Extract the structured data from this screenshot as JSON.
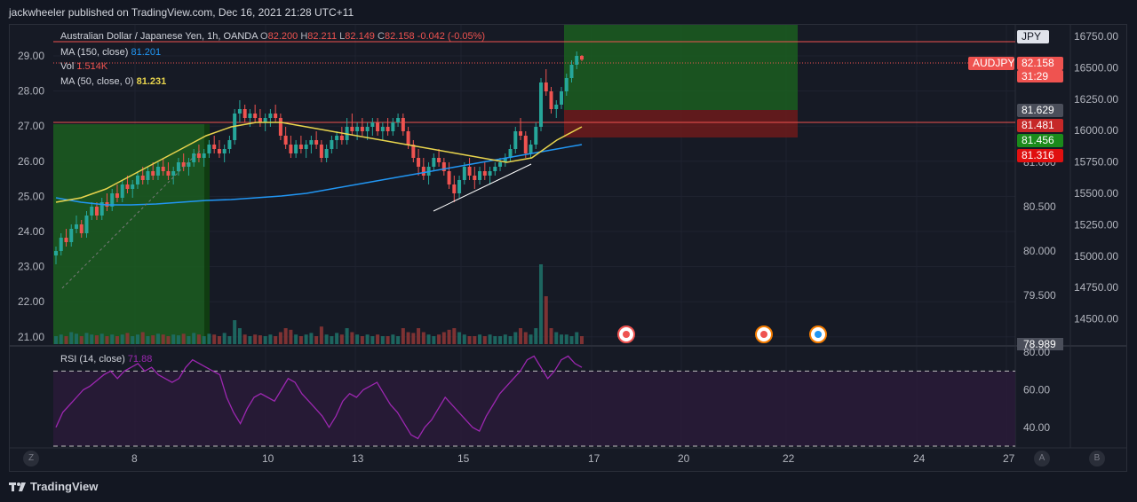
{
  "caption": "jackwheeler published on TradingView.com, Dec 16, 2021 21:28 UTC+11",
  "footer": {
    "brand": "TradingView"
  },
  "legend": {
    "symbol": "Australian Dollar / Japanese Yen, 1h, OANDA",
    "o_label": "O",
    "o_value": "82.200",
    "h_label": "H",
    "h_value": "82.211",
    "l_label": "L",
    "l_value": "82.149",
    "c_label": "C",
    "c_value": "82.158",
    "change": "-0.042 (-0.05%)",
    "ma150_label": "MA (150, close)",
    "ma150_value": "81.201",
    "vol_label": "Vol",
    "vol_value": "1.514K",
    "ma50_label": "MA (50, close, 0)",
    "ma50_value": "81.231",
    "rsi_label": "RSI (14, close)",
    "rsi_value": "71.88"
  },
  "colors": {
    "bull": "#26a69a",
    "bear": "#ef5350",
    "ma150": "#2196f3",
    "ma50": "#e8d44d",
    "rsi": "#9c27b0",
    "green_zone": "#1b5e20",
    "red_zone": "#6d1b1b",
    "hline": "#ef5350",
    "trendline": "#ffffff"
  },
  "chart_data": {
    "type": "candlestick",
    "title": "Australian Dollar / Japanese Yen, 1h, OANDA",
    "left_axis_ticks": [
      "29.00",
      "28.00",
      "27.00",
      "26.00",
      "25.00",
      "24.00",
      "23.00",
      "22.00",
      "21.00"
    ],
    "left_axis_range": [
      20.9,
      29.5
    ],
    "price_axis_ticks": [
      "81.000",
      "80.500",
      "80.000",
      "79.500",
      "78.989"
    ],
    "price_range": [
      78.95,
      82.55
    ],
    "second_axis_ticks": [
      "16750.00",
      "16500.00",
      "16250.00",
      "16000.00",
      "15750.00",
      "15500.00",
      "15250.00",
      "15000.00",
      "14750.00",
      "14500.00"
    ],
    "x_axis_labels": [
      "8",
      "10",
      "13",
      "15",
      "17",
      "20",
      "22",
      "24",
      "27"
    ],
    "rsi_axis_ticks": [
      "80.00",
      "60.00",
      "40.00"
    ],
    "rsi_range": [
      30,
      82
    ],
    "rsi_bands": [
      70,
      30
    ],
    "price_labels": [
      {
        "text": "JPY",
        "bg": "#e0e3eb",
        "fg": "#131722"
      },
      {
        "text": "AUDJPY",
        "bg": "#ef5350",
        "fg": "#ffffff"
      },
      {
        "text": "82.158",
        "bg": "#ef5350",
        "fg": "#ffffff"
      },
      {
        "text": "31:29",
        "bg": "#ef5350",
        "fg": "#ffffff"
      },
      {
        "text": "81.629",
        "bg": "#4a4e5a",
        "fg": "#ffffff"
      },
      {
        "text": "81.481",
        "bg": "#c62828",
        "fg": "#ffffff"
      },
      {
        "text": "81.456",
        "bg": "#1b8a1b",
        "fg": "#ffffff"
      },
      {
        "text": "81.316",
        "bg": "#e01010",
        "fg": "#ffffff"
      },
      {
        "text": "78.989",
        "bg": "#4a4e5a",
        "fg": "#ffffff"
      }
    ],
    "candles": [
      [
        79.95,
        80.05,
        79.85,
        80.0
      ],
      [
        80.0,
        80.2,
        79.95,
        80.15
      ],
      [
        80.15,
        80.25,
        80.05,
        80.1
      ],
      [
        80.1,
        80.3,
        80.05,
        80.25
      ],
      [
        80.25,
        80.4,
        80.2,
        80.3
      ],
      [
        80.3,
        80.35,
        80.15,
        80.2
      ],
      [
        80.2,
        80.45,
        80.15,
        80.4
      ],
      [
        80.4,
        80.55,
        80.35,
        80.5
      ],
      [
        80.5,
        80.55,
        80.35,
        80.4
      ],
      [
        80.4,
        80.6,
        80.35,
        80.55
      ],
      [
        80.55,
        80.65,
        80.45,
        80.5
      ],
      [
        80.5,
        80.7,
        80.45,
        80.65
      ],
      [
        80.65,
        80.75,
        80.55,
        80.6
      ],
      [
        80.6,
        80.8,
        80.55,
        80.75
      ],
      [
        80.75,
        80.85,
        80.65,
        80.7
      ],
      [
        80.7,
        80.8,
        80.6,
        80.75
      ],
      [
        80.75,
        80.9,
        80.7,
        80.85
      ],
      [
        80.85,
        80.95,
        80.75,
        80.8
      ],
      [
        80.8,
        80.95,
        80.75,
        80.9
      ],
      [
        80.9,
        81.0,
        80.8,
        80.85
      ],
      [
        80.85,
        81.0,
        80.8,
        80.95
      ],
      [
        80.95,
        81.05,
        80.85,
        80.9
      ],
      [
        80.9,
        81.0,
        80.8,
        80.85
      ],
      [
        80.85,
        80.95,
        80.75,
        80.9
      ],
      [
        80.9,
        81.05,
        80.85,
        81.0
      ],
      [
        81.0,
        81.1,
        80.9,
        80.95
      ],
      [
        80.95,
        81.05,
        80.85,
        81.0
      ],
      [
        81.0,
        81.15,
        80.95,
        81.1
      ],
      [
        81.1,
        81.2,
        81.0,
        81.05
      ],
      [
        81.05,
        81.15,
        80.95,
        81.1
      ],
      [
        81.1,
        81.25,
        81.05,
        81.2
      ],
      [
        81.2,
        81.3,
        81.1,
        81.15
      ],
      [
        81.15,
        81.25,
        81.05,
        81.1
      ],
      [
        81.1,
        81.2,
        81.0,
        81.15
      ],
      [
        81.15,
        81.3,
        81.1,
        81.25
      ],
      [
        81.25,
        81.6,
        81.2,
        81.55
      ],
      [
        81.55,
        81.7,
        81.45,
        81.6
      ],
      [
        81.6,
        81.65,
        81.45,
        81.5
      ],
      [
        81.5,
        81.6,
        81.4,
        81.55
      ],
      [
        81.55,
        81.65,
        81.45,
        81.5
      ],
      [
        81.5,
        81.6,
        81.4,
        81.45
      ],
      [
        81.45,
        81.55,
        81.35,
        81.5
      ],
      [
        81.5,
        81.6,
        81.4,
        81.55
      ],
      [
        81.55,
        81.65,
        81.45,
        81.5
      ],
      [
        81.5,
        81.55,
        81.25,
        81.3
      ],
      [
        81.3,
        81.4,
        81.15,
        81.2
      ],
      [
        81.2,
        81.3,
        81.05,
        81.1
      ],
      [
        81.1,
        81.25,
        81.05,
        81.2
      ],
      [
        81.2,
        81.3,
        81.1,
        81.15
      ],
      [
        81.15,
        81.25,
        81.05,
        81.2
      ],
      [
        81.2,
        81.3,
        81.1,
        81.25
      ],
      [
        81.25,
        81.35,
        81.15,
        81.2
      ],
      [
        81.2,
        81.25,
        81.0,
        81.05
      ],
      [
        81.05,
        81.2,
        81.0,
        81.15
      ],
      [
        81.15,
        81.3,
        81.1,
        81.25
      ],
      [
        81.25,
        81.35,
        81.15,
        81.3
      ],
      [
        81.3,
        81.4,
        81.2,
        81.25
      ],
      [
        81.25,
        81.5,
        81.2,
        81.4
      ],
      [
        81.4,
        81.55,
        81.3,
        81.35
      ],
      [
        81.35,
        81.45,
        81.25,
        81.4
      ],
      [
        81.4,
        81.5,
        81.3,
        81.35
      ],
      [
        81.35,
        81.45,
        81.25,
        81.4
      ],
      [
        81.4,
        81.5,
        81.3,
        81.45
      ],
      [
        81.45,
        81.5,
        81.3,
        81.35
      ],
      [
        81.35,
        81.45,
        81.25,
        81.4
      ],
      [
        81.4,
        81.5,
        81.3,
        81.35
      ],
      [
        81.35,
        81.5,
        81.3,
        81.45
      ],
      [
        81.45,
        81.55,
        81.4,
        81.5
      ],
      [
        81.5,
        81.55,
        81.3,
        81.35
      ],
      [
        81.35,
        81.4,
        81.15,
        81.2
      ],
      [
        81.2,
        81.25,
        81.0,
        81.05
      ],
      [
        81.05,
        81.15,
        80.85,
        80.95
      ],
      [
        80.95,
        81.05,
        80.8,
        80.85
      ],
      [
        80.85,
        81.0,
        80.75,
        80.95
      ],
      [
        80.95,
        81.1,
        80.9,
        81.05
      ],
      [
        81.05,
        81.15,
        80.95,
        81.0
      ],
      [
        81.0,
        81.05,
        80.85,
        80.9
      ],
      [
        80.9,
        81.0,
        80.7,
        80.75
      ],
      [
        80.75,
        80.85,
        80.55,
        80.65
      ],
      [
        80.65,
        80.85,
        80.6,
        80.8
      ],
      [
        80.8,
        81.0,
        80.75,
        80.95
      ],
      [
        80.95,
        81.05,
        80.8,
        80.85
      ],
      [
        80.85,
        80.95,
        80.7,
        80.8
      ],
      [
        80.8,
        80.95,
        80.75,
        80.9
      ],
      [
        80.9,
        81.0,
        80.8,
        80.85
      ],
      [
        80.85,
        80.95,
        80.75,
        80.9
      ],
      [
        80.9,
        81.0,
        80.85,
        80.95
      ],
      [
        80.95,
        81.05,
        80.9,
        81.0
      ],
      [
        81.0,
        81.1,
        80.95,
        81.05
      ],
      [
        81.05,
        81.2,
        81.0,
        81.15
      ],
      [
        81.15,
        81.4,
        81.1,
        81.35
      ],
      [
        81.35,
        81.5,
        81.25,
        81.3
      ],
      [
        81.3,
        81.35,
        81.05,
        81.1
      ],
      [
        81.1,
        81.25,
        81.05,
        81.2
      ],
      [
        81.2,
        81.45,
        81.15,
        81.4
      ],
      [
        81.4,
        81.95,
        81.35,
        81.9
      ],
      [
        81.9,
        82.05,
        81.75,
        81.8
      ],
      [
        81.8,
        81.85,
        81.55,
        81.6
      ],
      [
        81.6,
        81.7,
        81.5,
        81.65
      ],
      [
        81.65,
        81.85,
        81.6,
        81.8
      ],
      [
        81.8,
        82.0,
        81.75,
        81.95
      ],
      [
        81.95,
        82.15,
        81.9,
        82.1
      ],
      [
        82.1,
        82.25,
        82.05,
        82.2
      ],
      [
        82.2,
        82.21,
        82.14,
        82.158
      ]
    ],
    "ma50": [
      80.55,
      80.6,
      80.7,
      80.85,
      81.0,
      81.15,
      81.3,
      81.4,
      81.45,
      81.45,
      81.4,
      81.35,
      81.3,
      81.25,
      81.2,
      81.15,
      81.1,
      81.05,
      81.0,
      81.05,
      81.25,
      81.4
    ],
    "ma150": [
      80.6,
      80.55,
      80.52,
      80.52,
      80.53,
      80.55,
      80.57,
      80.58,
      80.6,
      80.62,
      80.65,
      80.7,
      80.75,
      80.8,
      80.85,
      80.9,
      80.95,
      81.0,
      81.05,
      81.1,
      81.15,
      81.2
    ],
    "volume": [
      0.1,
      0.12,
      0.1,
      0.15,
      0.13,
      0.1,
      0.14,
      0.12,
      0.11,
      0.13,
      0.1,
      0.12,
      0.1,
      0.12,
      0.14,
      0.1,
      0.12,
      0.15,
      0.1,
      0.11,
      0.13,
      0.12,
      0.1,
      0.12,
      0.11,
      0.13,
      0.1,
      0.14,
      0.12,
      0.1,
      0.13,
      0.12,
      0.1,
      0.14,
      0.1,
      0.3,
      0.2,
      0.12,
      0.1,
      0.12,
      0.11,
      0.1,
      0.12,
      0.1,
      0.15,
      0.2,
      0.18,
      0.12,
      0.1,
      0.12,
      0.14,
      0.1,
      0.22,
      0.12,
      0.1,
      0.14,
      0.12,
      0.2,
      0.15,
      0.12,
      0.1,
      0.12,
      0.1,
      0.12,
      0.1,
      0.1,
      0.12,
      0.1,
      0.2,
      0.15,
      0.14,
      0.2,
      0.15,
      0.12,
      0.1,
      0.12,
      0.15,
      0.18,
      0.2,
      0.15,
      0.12,
      0.1,
      0.1,
      0.12,
      0.1,
      0.12,
      0.1,
      0.1,
      0.12,
      0.1,
      0.15,
      0.2,
      0.15,
      0.12,
      0.2,
      1.0,
      0.6,
      0.2,
      0.15,
      0.12,
      0.12,
      0.1,
      0.15,
      0.1
    ],
    "rsi": [
      40,
      48,
      52,
      56,
      60,
      62,
      65,
      68,
      70,
      66,
      70,
      72,
      74,
      70,
      72,
      68,
      66,
      64,
      66,
      72,
      76,
      74,
      72,
      70,
      68,
      56,
      48,
      42,
      50,
      56,
      58,
      56,
      54,
      60,
      66,
      64,
      58,
      54,
      50,
      46,
      40,
      46,
      54,
      58,
      56,
      60,
      62,
      64,
      58,
      52,
      48,
      42,
      36,
      34,
      40,
      44,
      50,
      56,
      52,
      48,
      44,
      40,
      38,
      46,
      52,
      58,
      62,
      66,
      70,
      76,
      78,
      72,
      66,
      70,
      76,
      78,
      74,
      72
    ],
    "zones": {
      "long_left": {
        "target": 81.62,
        "entry": 81.35
      },
      "long_right": {
        "target": 82.55,
        "entry": 81.63,
        "stop": 81.456
      }
    }
  }
}
